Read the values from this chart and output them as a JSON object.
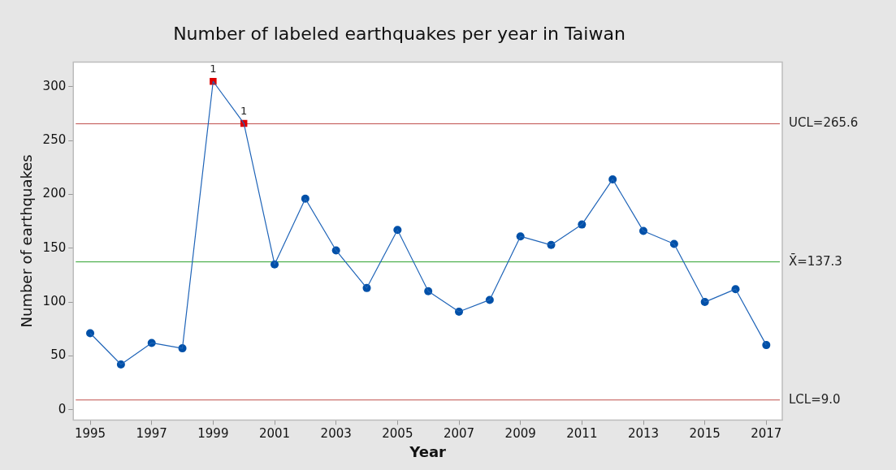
{
  "chart_data": {
    "type": "line",
    "title": "Number of labeled earthquakes per year in Taiwan",
    "xlabel": "Year",
    "ylabel": "Number of earthquakes",
    "xlim": [
      1994.45,
      2017.52
    ],
    "xticks": [
      1995,
      1997,
      1999,
      2001,
      2003,
      2005,
      2007,
      2009,
      2011,
      2013,
      2015,
      2017
    ],
    "ylim": [
      -9.6,
      323
    ],
    "yticks": [
      0,
      50,
      100,
      150,
      200,
      250,
      300
    ],
    "grid": false,
    "legend": false,
    "series": [
      {
        "type": "line",
        "color": "#1f64b8",
        "marker": "none",
        "x": [
          1995,
          1996,
          1997,
          1998,
          1999,
          2000,
          2001,
          2002,
          2003,
          2004,
          2005,
          2006,
          2007,
          2008,
          2009,
          2010,
          2011,
          2012,
          2013,
          2014,
          2015,
          2016,
          2017
        ],
        "values": [
          71,
          42,
          62,
          57,
          305,
          266,
          135,
          196,
          148,
          113,
          167,
          110,
          91,
          102,
          161,
          153,
          172,
          214,
          166,
          154,
          100,
          112,
          60
        ]
      },
      {
        "type": "scatter",
        "color": "#0050a8",
        "marker": "circle",
        "x": [
          1995,
          1996,
          1997,
          1998,
          2001,
          2002,
          2003,
          2004,
          2005,
          2006,
          2007,
          2008,
          2009,
          2010,
          2011,
          2012,
          2013,
          2014,
          2015,
          2016,
          2017
        ],
        "values": [
          71,
          42,
          62,
          57,
          135,
          196,
          148,
          113,
          167,
          110,
          91,
          102,
          161,
          153,
          172,
          214,
          166,
          154,
          100,
          112,
          60
        ]
      },
      {
        "type": "scatter",
        "color": "#dd0000",
        "marker": "square",
        "x": [
          1999,
          2000
        ],
        "values": [
          305,
          266
        ]
      }
    ],
    "ref_lines": [
      {
        "axis": "y",
        "value": 265.6,
        "label": "UCL=265.6",
        "color": "#c0504d"
      },
      {
        "axis": "y",
        "value": 137.3,
        "label": "X̄=137.3",
        "color": "#2ca02c"
      },
      {
        "axis": "y",
        "value": 9.0,
        "label": "LCL=9.0",
        "color": "#c0504d"
      }
    ],
    "annotations": [
      {
        "text": "1",
        "x": 1999,
        "y": 305
      },
      {
        "text": "1",
        "x": 2000,
        "y": 266
      }
    ]
  }
}
